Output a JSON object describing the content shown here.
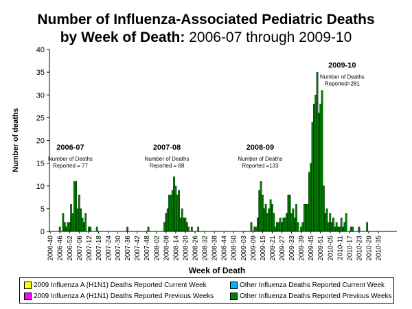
{
  "title": {
    "line1": "Number of Influenza-Associated Pediatric Deaths",
    "line2_bold": "by Week of Death:",
    "line2_normal": " 2006-07 through 2009-10"
  },
  "chart_data": {
    "type": "bar",
    "ylabel": "Number of deaths",
    "xlabel": "Week of Death",
    "ylim": [
      0,
      40
    ],
    "yticks": [
      0,
      5,
      10,
      15,
      20,
      25,
      30,
      35,
      40
    ],
    "grid": false,
    "xtick_labels": [
      "2006-40",
      "2006-46",
      "2006-52",
      "2007-06",
      "2007-12",
      "2007-18",
      "2007-24",
      "2007-30",
      "2007-36",
      "2007-42",
      "2007-48",
      "2008-02",
      "2008-08",
      "2008-14",
      "2008-20",
      "2008-26",
      "2008-32",
      "2008-38",
      "2008-44",
      "2008-50",
      "2009-03",
      "2009-09",
      "2009-15",
      "2009-21",
      "2009-27",
      "2009-33",
      "2009-39",
      "2009-45",
      "2009-51",
      "2010-05",
      "2010-11",
      "2010-17",
      "2010-23",
      "2010-29",
      "2010-35"
    ],
    "series": [
      {
        "name": "Other Influenza  Deaths Reported Previous Weeks",
        "color": "#008000",
        "values": [
          0,
          0,
          0,
          0,
          0,
          0,
          1,
          0,
          4,
          2,
          1,
          2,
          2,
          6,
          4,
          11,
          11,
          5,
          8,
          5,
          3,
          2,
          4,
          0,
          1,
          1,
          0,
          0,
          0,
          1,
          0,
          0,
          0,
          0,
          0,
          0,
          0,
          0,
          0,
          0,
          0,
          0,
          0,
          0,
          0,
          0,
          0,
          0,
          1,
          0,
          0,
          0,
          0,
          0,
          0,
          0,
          0,
          0,
          0,
          0,
          0,
          1,
          0,
          0,
          0,
          0,
          0,
          0,
          0,
          0,
          0,
          2,
          4,
          5,
          8,
          8,
          9,
          12,
          10,
          8,
          9,
          3,
          5,
          3,
          3,
          2,
          1,
          0,
          1,
          0,
          0,
          0,
          1,
          0,
          0,
          0,
          0,
          0,
          0,
          0,
          0,
          0,
          0,
          0,
          0,
          0,
          0,
          0,
          0,
          0,
          0,
          0,
          0,
          0,
          0,
          0,
          0,
          0,
          0,
          0,
          0,
          0,
          0,
          0,
          0,
          2,
          0,
          1,
          1,
          3,
          9,
          11,
          8,
          5,
          6,
          4,
          5,
          7,
          6,
          4,
          1,
          2,
          2,
          3,
          2,
          3,
          3,
          4,
          8,
          8,
          4,
          5,
          3,
          6,
          2,
          0,
          1,
          2,
          6,
          6,
          6,
          13,
          15,
          24,
          28,
          30,
          35,
          26,
          28,
          31,
          10,
          4,
          5,
          2,
          4,
          2,
          3,
          1,
          2,
          1,
          1,
          3,
          1,
          2,
          4,
          0,
          0,
          1,
          1,
          0,
          0,
          0,
          1,
          0,
          0,
          0,
          0,
          2,
          0,
          0,
          0,
          0,
          0,
          0,
          0,
          0,
          0,
          0,
          0,
          0,
          0,
          0,
          0,
          0,
          0,
          0
        ]
      }
    ],
    "legend": [
      {
        "label": "2009 Influenza  A (H1N1) Deaths Reported Current Week",
        "color": "#ffff00"
      },
      {
        "label": "Other Influenza  Deaths Reported Current Week",
        "color": "#00b0f0"
      },
      {
        "label": "2009 Influenza  A (H1N1) Deaths Reported Previous Weeks",
        "color": "#ff00ff"
      },
      {
        "label": "Other Influenza  Deaths Reported Previous Weeks",
        "color": "#008000"
      }
    ],
    "legend_position": "bottom",
    "annotations": [
      {
        "season": "2006-07",
        "line1": "Number of Deaths",
        "line2": "Reported = 77",
        "x_index": 13,
        "y": 18
      },
      {
        "season": "2007-08",
        "line1": "Number of Deaths",
        "line2": "Reported = 88",
        "x_index": 73,
        "y": 18
      },
      {
        "season": "2008-09",
        "line1": "Number of Deaths",
        "line2": "Reported =133",
        "x_index": 131,
        "y": 18
      },
      {
        "season": "2009-10",
        "line1": "Number of Deaths",
        "line2": "Reported=281",
        "x_index": 182,
        "y": 36
      }
    ]
  }
}
